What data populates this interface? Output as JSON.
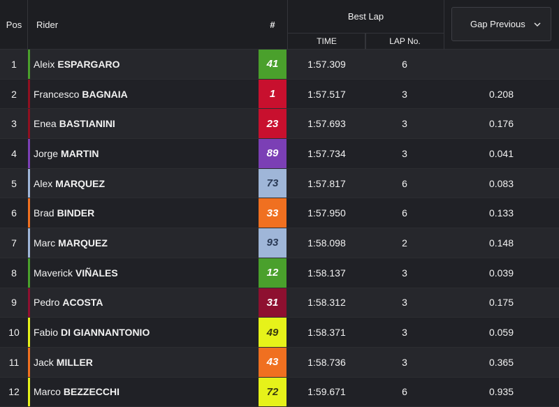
{
  "header": {
    "pos": "Pos",
    "rider": "Rider",
    "number": "#",
    "best_lap": "Best Lap",
    "time": "TIME",
    "lap_no": "LAP No.",
    "gap_select": "Gap Previous",
    "gap_select_icon": "chevron-down-icon"
  },
  "rows": [
    {
      "pos": "1",
      "first": "Aleix",
      "last": "ESPARGARO",
      "number": "41",
      "number_bg": "#4aa02c",
      "number_fg": "#ffffff",
      "bar": "#4aa02c",
      "time": "1:57.309",
      "lap": "6",
      "gap": ""
    },
    {
      "pos": "2",
      "first": "Francesco",
      "last": "BAGNAIA",
      "number": "1",
      "number_bg": "#c8102e",
      "number_fg": "#ffffff",
      "bar": "#8f1020",
      "time": "1:57.517",
      "lap": "3",
      "gap": "0.208"
    },
    {
      "pos": "3",
      "first": "Enea",
      "last": "BASTIANINI",
      "number": "23",
      "number_bg": "#c8102e",
      "number_fg": "#ffffff",
      "bar": "#8f1020",
      "time": "1:57.693",
      "lap": "3",
      "gap": "0.176"
    },
    {
      "pos": "4",
      "first": "Jorge",
      "last": "MARTIN",
      "number": "89",
      "number_bg": "#7b3fb5",
      "number_fg": "#ffffff",
      "bar": "#7b3fb5",
      "time": "1:57.734",
      "lap": "3",
      "gap": "0.041"
    },
    {
      "pos": "5",
      "first": "Alex",
      "last": "MARQUEZ",
      "number": "73",
      "number_bg": "#9fb6d8",
      "number_fg": "#2a3a55",
      "bar": "#9fb6d8",
      "time": "1:57.817",
      "lap": "6",
      "gap": "0.083"
    },
    {
      "pos": "6",
      "first": "Brad",
      "last": "BINDER",
      "number": "33",
      "number_bg": "#f07020",
      "number_fg": "#ffffff",
      "bar": "#f07020",
      "time": "1:57.950",
      "lap": "6",
      "gap": "0.133"
    },
    {
      "pos": "7",
      "first": "Marc",
      "last": "MARQUEZ",
      "number": "93",
      "number_bg": "#9fb6d8",
      "number_fg": "#2a3a55",
      "bar": "#9fb6d8",
      "time": "1:58.098",
      "lap": "2",
      "gap": "0.148"
    },
    {
      "pos": "8",
      "first": "Maverick",
      "last": "VIÑALES",
      "number": "12",
      "number_bg": "#4aa02c",
      "number_fg": "#ffffff",
      "bar": "#4aa02c",
      "time": "1:58.137",
      "lap": "3",
      "gap": "0.039"
    },
    {
      "pos": "9",
      "first": "Pedro",
      "last": "ACOSTA",
      "number": "31",
      "number_bg": "#8e1030",
      "number_fg": "#ffffff",
      "bar": "#8e1030",
      "time": "1:58.312",
      "lap": "3",
      "gap": "0.175"
    },
    {
      "pos": "10",
      "first": "Fabio",
      "last": "DI GIANNANTONIO",
      "number": "49",
      "number_bg": "#e6f21a",
      "number_fg": "#3a3a10",
      "bar": "#e6f21a",
      "time": "1:58.371",
      "lap": "3",
      "gap": "0.059"
    },
    {
      "pos": "11",
      "first": "Jack",
      "last": "MILLER",
      "number": "43",
      "number_bg": "#f07020",
      "number_fg": "#ffffff",
      "bar": "#f07020",
      "time": "1:58.736",
      "lap": "3",
      "gap": "0.365"
    },
    {
      "pos": "12",
      "first": "Marco",
      "last": "BEZZECCHI",
      "number": "72",
      "number_bg": "#e6f21a",
      "number_fg": "#3a3a10",
      "bar": "#e6f21a",
      "time": "1:59.671",
      "lap": "6",
      "gap": "0.935"
    }
  ]
}
